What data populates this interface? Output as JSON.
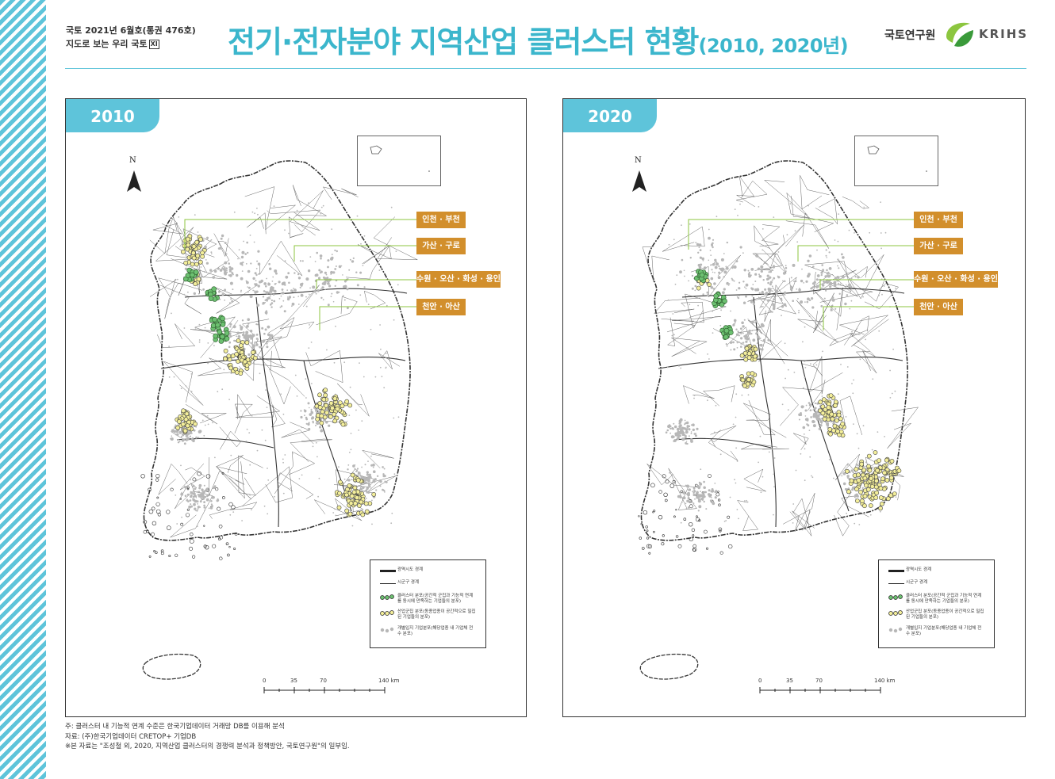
{
  "header": {
    "issue_line1": "국토 2021년 6월호(통권 476호)",
    "issue_line2": "지도로 보는 우리 국토",
    "issue_tag": "XI",
    "title_main": "전기·전자분야 지역산업 클러스터 현황",
    "title_sub": "(2010, 2020년)",
    "org_kr": "국토연구원",
    "org_en": "KRIHS"
  },
  "colors": {
    "accent": "#5ec4da",
    "title": "#3bb6cc",
    "label_box": "#d28f2c",
    "leader_line": "#8cc63f",
    "cluster_green": "#6cc070",
    "cluster_yellow": "#f3ee9a",
    "scattered_gray": "#b7b7b7"
  },
  "panels": [
    {
      "year": "2010",
      "north_label": "N",
      "region_labels": [
        "인천 · 부천",
        "가산 · 구로",
        "수원 · 오산 · 화성 · 용인",
        "천안 · 아산"
      ]
    },
    {
      "year": "2020",
      "north_label": "N",
      "region_labels": [
        "인천 · 부천",
        "가산 · 구로",
        "수원 · 오산 · 화성 · 용인",
        "천안 · 아산"
      ]
    }
  ],
  "legend": {
    "items": [
      "광역시도 경계",
      "시군구 경계",
      "클러스터 분포(공간적 군집과 기능적 연계를 동시에 만족하는 기업들의 분포)",
      "산업군집 분포(동종업종이 공간적으로 밀집된 기업들의 분포)",
      "개별입지 기업분포(해당업종 내 기업체 전수 분포)"
    ]
  },
  "scale_bar": {
    "ticks": [
      "0",
      "35",
      "70",
      "140 km"
    ]
  },
  "notes": [
    "주: 클러스터 내 기능적 연계 수준은 한국기업데이터 거래망 DB를 이용해 분석",
    "자료: (주)한국기업데이터 CRETOP+ 기업DB",
    "※본 자료는 \"조성철 외, 2020, 지역산업 클러스터의 경쟁력 분석과 정책방안, 국토연구원\"의 일부임."
  ]
}
